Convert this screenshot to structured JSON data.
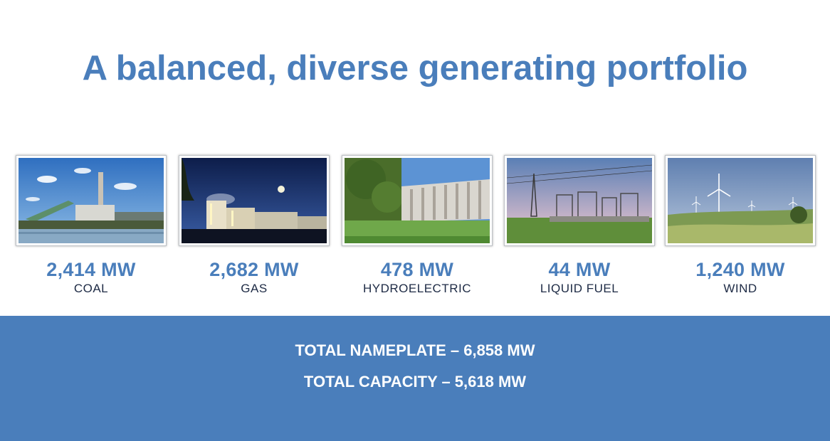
{
  "title": "A balanced, diverse generating portfolio",
  "sources": [
    {
      "mw": "2,414 MW",
      "label": "COAL"
    },
    {
      "mw": "2,682 MW",
      "label": "GAS"
    },
    {
      "mw": "478 MW",
      "label": "HYDROELECTRIC"
    },
    {
      "mw": "44 MW",
      "label": "LIQUID FUEL"
    },
    {
      "mw": "1,240 MW",
      "label": "WIND"
    }
  ],
  "totals": {
    "nameplate": "TOTAL NAMEPLATE – 6,858 MW",
    "capacity": "TOTAL CAPACITY – 5,618 MW"
  },
  "colors": {
    "accent": "#4a7ebb",
    "label": "#1d2a44",
    "band": "#4a7ebb"
  }
}
